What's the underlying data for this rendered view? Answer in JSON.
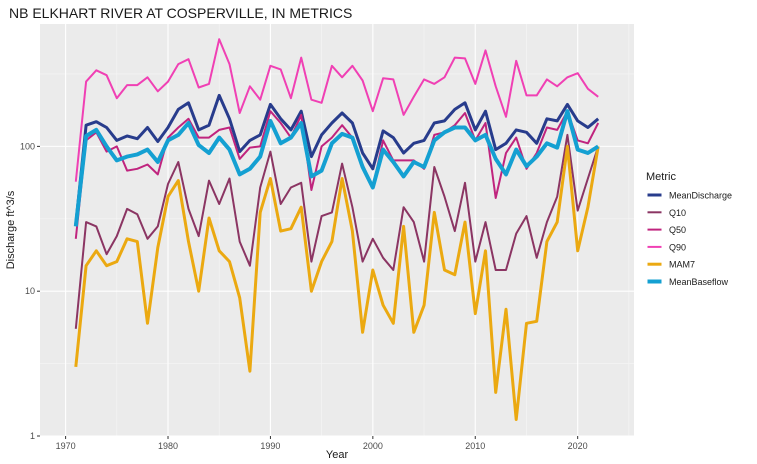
{
  "chart_data": {
    "type": "line",
    "title": "NB ELKHART RIVER AT COSPERVILLE, IN  METRICS",
    "xlabel": "Year",
    "ylabel": "Discharge ft^3/s",
    "yscale": "log",
    "xlim": [
      1967.5,
      2025.5
    ],
    "ylim": [
      1,
      700
    ],
    "x_ticks": [
      1970,
      1980,
      1990,
      2000,
      2010,
      2020
    ],
    "y_ticks": [
      {
        "value": 1,
        "label": "1"
      },
      {
        "value": 10,
        "label": "10"
      },
      {
        "value": 100,
        "label": "100"
      }
    ],
    "grid": true,
    "legend_position": "right",
    "legend_title": "Metric",
    "x": [
      1971,
      1972,
      1973,
      1974,
      1975,
      1976,
      1977,
      1978,
      1979,
      1980,
      1981,
      1982,
      1983,
      1984,
      1985,
      1986,
      1987,
      1988,
      1989,
      1990,
      1991,
      1992,
      1993,
      1994,
      1995,
      1996,
      1997,
      1998,
      1999,
      2000,
      2001,
      2002,
      2003,
      2004,
      2005,
      2006,
      2007,
      2008,
      2009,
      2010,
      2011,
      2012,
      2013,
      2014,
      2015,
      2016,
      2017,
      2018,
      2019,
      2020,
      2021,
      2022
    ],
    "series": [
      {
        "name": "MeanDischarge",
        "color": "#283c8c",
        "width": 3,
        "values": [
          29,
          140,
          148,
          135,
          110,
          118,
          113,
          135,
          108,
          135,
          180,
          200,
          130,
          140,
          225,
          155,
          92,
          110,
          120,
          195,
          155,
          130,
          175,
          85,
          120,
          145,
          170,
          145,
          90,
          70,
          128,
          115,
          90,
          105,
          110,
          145,
          150,
          180,
          200,
          130,
          175,
          95,
          105,
          130,
          125,
          105,
          155,
          150,
          195,
          150,
          135,
          155
        ]
      },
      {
        "name": "Q10",
        "color": "#8b3563",
        "width": 2,
        "values": [
          5.5,
          30,
          28,
          18,
          24,
          37,
          34,
          23,
          28,
          55,
          78,
          37,
          24,
          58,
          40,
          60,
          22,
          15,
          52,
          92,
          40,
          52,
          56,
          16,
          33,
          35,
          76,
          38,
          16,
          23,
          17,
          14,
          38,
          30,
          16,
          72,
          45,
          26,
          56,
          16,
          30,
          14,
          14,
          25,
          33,
          17,
          30,
          45,
          120,
          36,
          60,
          100
        ]
      },
      {
        "name": "Q50",
        "color": "#c0247e",
        "width": 2,
        "values": [
          23,
          110,
          125,
          92,
          100,
          68,
          70,
          75,
          64,
          115,
          135,
          155,
          115,
          115,
          130,
          135,
          82,
          98,
          100,
          175,
          145,
          115,
          165,
          50,
          100,
          115,
          140,
          115,
          75,
          52,
          110,
          80,
          80,
          80,
          70,
          120,
          125,
          140,
          170,
          110,
          145,
          44,
          90,
          115,
          70,
          90,
          135,
          130,
          175,
          110,
          105,
          145
        ]
      },
      {
        "name": "Q90",
        "color": "#f040b4",
        "width": 2,
        "values": [
          57,
          280,
          335,
          310,
          215,
          265,
          265,
          300,
          240,
          280,
          370,
          400,
          255,
          270,
          550,
          370,
          170,
          260,
          210,
          360,
          340,
          215,
          410,
          210,
          200,
          360,
          300,
          360,
          285,
          175,
          295,
          290,
          165,
          220,
          290,
          270,
          300,
          410,
          405,
          270,
          460,
          260,
          160,
          390,
          225,
          225,
          290,
          260,
          300,
          320,
          250,
          220
        ]
      },
      {
        "name": "MAM7",
        "color": "#eba911",
        "width": 3,
        "values": [
          3,
          15,
          19,
          15,
          16,
          23,
          22,
          6,
          20,
          45,
          58,
          22,
          10,
          32,
          19,
          16,
          9,
          2.8,
          35,
          60,
          26,
          27,
          38,
          10,
          16,
          22,
          60,
          26,
          5.2,
          14,
          8,
          6,
          28,
          5.2,
          8,
          35,
          14,
          13,
          30,
          7,
          19,
          2,
          7.5,
          1.3,
          6,
          6.2,
          22,
          30,
          100,
          19,
          38,
          100
        ]
      },
      {
        "name": "MeanBaseflow",
        "color": "#14a0d2",
        "width": 4,
        "values": [
          28,
          118,
          130,
          100,
          80,
          85,
          88,
          95,
          78,
          110,
          120,
          145,
          102,
          90,
          115,
          95,
          64,
          70,
          85,
          150,
          105,
          115,
          145,
          62,
          68,
          105,
          122,
          115,
          72,
          52,
          95,
          78,
          62,
          78,
          72,
          110,
          125,
          135,
          135,
          110,
          120,
          82,
          64,
          95,
          73,
          85,
          105,
          98,
          175,
          95,
          90,
          100
        ]
      }
    ]
  }
}
